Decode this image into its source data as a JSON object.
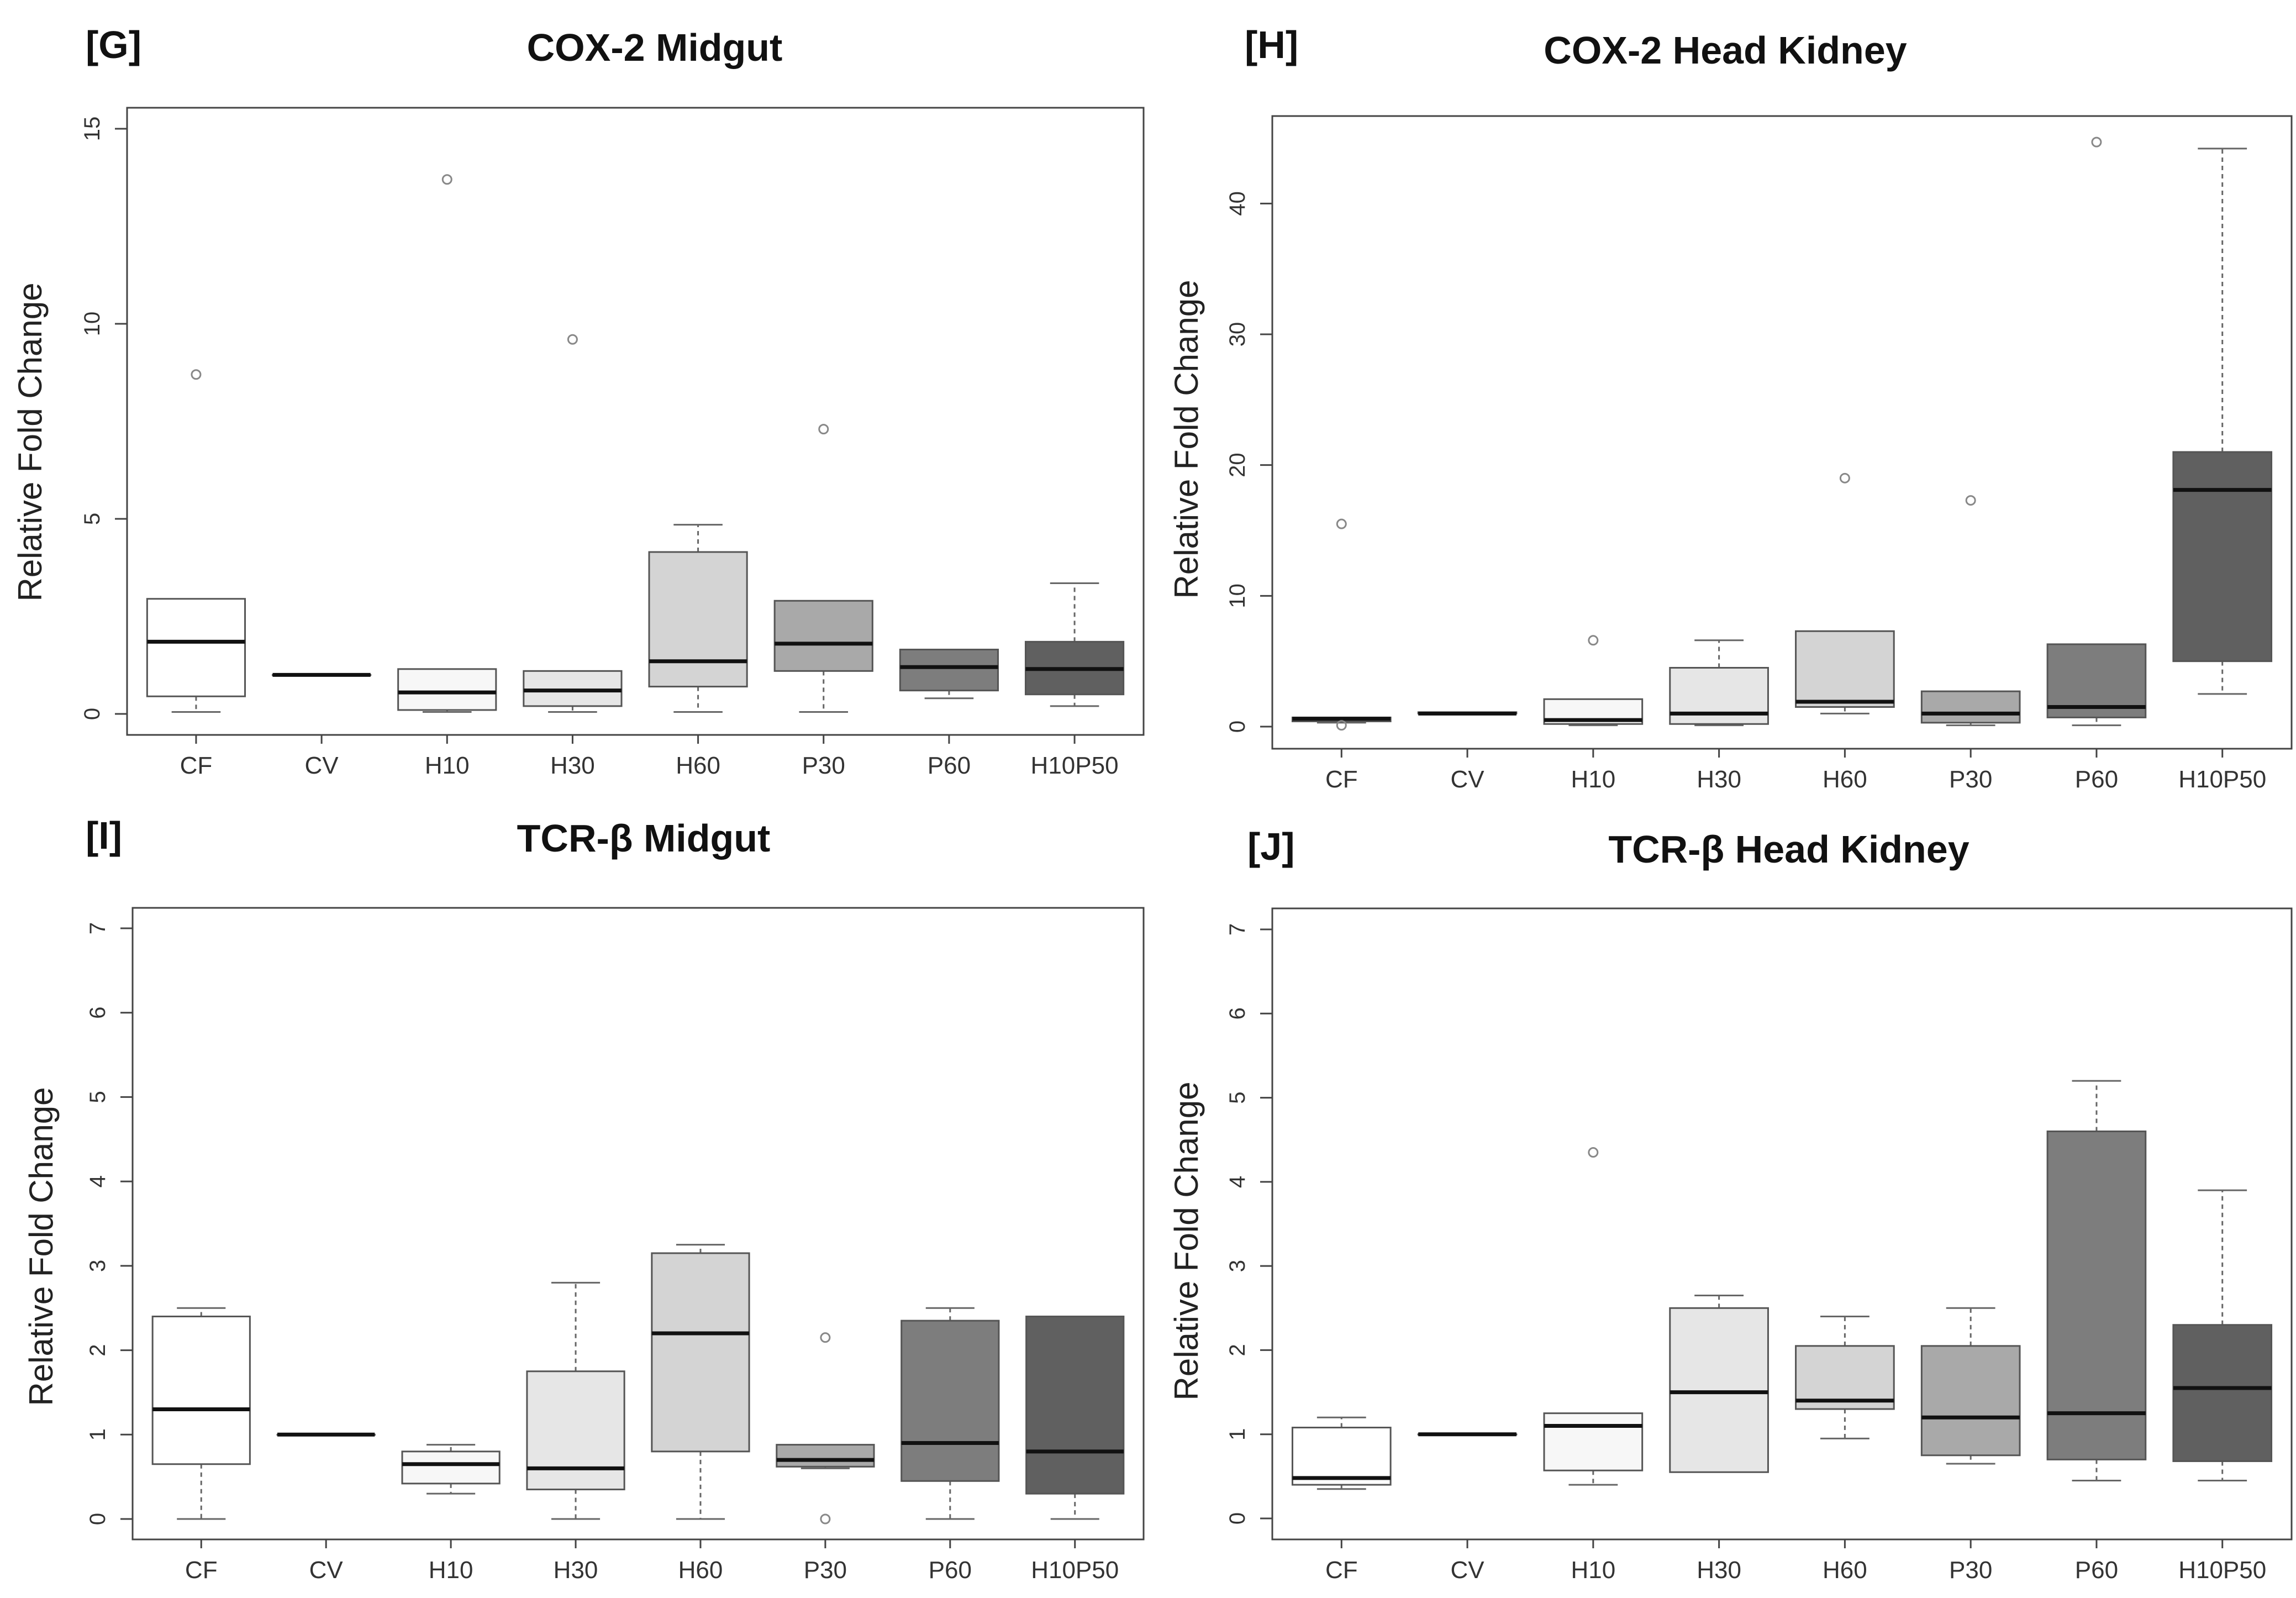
{
  "figure": {
    "box_colors": [
      "#ffffff",
      "#ffffff",
      "#f7f7f7",
      "#e6e6e6",
      "#d4d4d4",
      "#a9a9a9",
      "#7d7d7d",
      "#606060"
    ],
    "outline_color": "#555555",
    "outlier_color": "#888888"
  },
  "chart_data": [
    {
      "id": "G",
      "panel_label": "[G]",
      "type": "box",
      "title": "COX-2 Midgut",
      "xlabel": "",
      "ylabel": "Relative Fold Change",
      "ylim": [
        0,
        15
      ],
      "yticks": [
        0,
        5,
        10,
        15
      ],
      "categories": [
        "CF",
        "CV",
        "H10",
        "H30",
        "H60",
        "P30",
        "P60",
        "H10P50"
      ],
      "boxes": [
        {
          "min": 0.05,
          "q1": 0.45,
          "median": 1.85,
          "q3": 2.95,
          "max": 2.95,
          "outliers": [
            8.7
          ]
        },
        {
          "min": 1.0,
          "q1": 1.0,
          "median": 1.0,
          "q3": 1.0,
          "max": 1.0,
          "outliers": []
        },
        {
          "min": 0.05,
          "q1": 0.1,
          "median": 0.55,
          "q3": 1.15,
          "max": 1.15,
          "outliers": [
            13.7
          ]
        },
        {
          "min": 0.05,
          "q1": 0.2,
          "median": 0.6,
          "q3": 1.1,
          "max": 1.1,
          "outliers": [
            9.6
          ]
        },
        {
          "min": 0.05,
          "q1": 0.7,
          "median": 1.35,
          "q3": 4.15,
          "max": 4.85,
          "outliers": []
        },
        {
          "min": 0.05,
          "q1": 1.1,
          "median": 1.8,
          "q3": 2.9,
          "max": 2.9,
          "outliers": [
            7.3
          ]
        },
        {
          "min": 0.4,
          "q1": 0.6,
          "median": 1.2,
          "q3": 1.65,
          "max": 1.65,
          "outliers": []
        },
        {
          "min": 0.2,
          "q1": 0.5,
          "median": 1.15,
          "q3": 1.85,
          "max": 3.35,
          "outliers": []
        }
      ]
    },
    {
      "id": "H",
      "panel_label": "[H]",
      "type": "box",
      "title": "COX-2 Head Kidney",
      "xlabel": "",
      "ylabel": "Relative Fold Change",
      "ylim": [
        0,
        45
      ],
      "yticks": [
        0,
        10,
        20,
        30,
        40
      ],
      "categories": [
        "CF",
        "CV",
        "H10",
        "H30",
        "H60",
        "P30",
        "P60",
        "H10P50"
      ],
      "boxes": [
        {
          "min": 0.3,
          "q1": 0.4,
          "median": 0.6,
          "q3": 0.7,
          "max": 0.7,
          "outliers": [
            15.5,
            0.1
          ]
        },
        {
          "min": 1.0,
          "q1": 1.0,
          "median": 1.0,
          "q3": 1.1,
          "max": 1.1,
          "outliers": []
        },
        {
          "min": 0.1,
          "q1": 0.2,
          "median": 0.5,
          "q3": 2.1,
          "max": 2.1,
          "outliers": [
            6.6
          ]
        },
        {
          "min": 0.1,
          "q1": 0.2,
          "median": 1.0,
          "q3": 4.5,
          "max": 6.6,
          "outliers": []
        },
        {
          "min": 1.0,
          "q1": 1.5,
          "median": 1.9,
          "q3": 7.3,
          "max": 7.3,
          "outliers": [
            19.0
          ]
        },
        {
          "min": 0.1,
          "q1": 0.3,
          "median": 1.0,
          "q3": 2.7,
          "max": 2.7,
          "outliers": [
            17.3
          ]
        },
        {
          "min": 0.1,
          "q1": 0.7,
          "median": 1.5,
          "q3": 6.3,
          "max": 6.3,
          "outliers": [
            44.7
          ]
        },
        {
          "min": 2.5,
          "q1": 5.0,
          "median": 18.1,
          "q3": 21.0,
          "max": 44.2,
          "outliers": []
        }
      ]
    },
    {
      "id": "I",
      "panel_label": "[I]",
      "type": "box",
      "title": "TCR-β Midgut",
      "xlabel": "",
      "ylabel": "Relative Fold Change",
      "ylim": [
        0,
        7
      ],
      "yticks": [
        0,
        1,
        2,
        3,
        4,
        5,
        6,
        7
      ],
      "categories": [
        "CF",
        "CV",
        "H10",
        "H30",
        "H60",
        "P30",
        "P60",
        "H10P50"
      ],
      "boxes": [
        {
          "min": 0.0,
          "q1": 0.65,
          "median": 1.3,
          "q3": 2.4,
          "max": 2.5,
          "outliers": []
        },
        {
          "min": 1.0,
          "q1": 1.0,
          "median": 1.0,
          "q3": 1.0,
          "max": 1.0,
          "outliers": []
        },
        {
          "min": 0.3,
          "q1": 0.42,
          "median": 0.65,
          "q3": 0.8,
          "max": 0.88,
          "outliers": []
        },
        {
          "min": 0.0,
          "q1": 0.35,
          "median": 0.6,
          "q3": 1.75,
          "max": 2.8,
          "outliers": []
        },
        {
          "min": 0.0,
          "q1": 0.8,
          "median": 2.2,
          "q3": 3.15,
          "max": 3.25,
          "outliers": []
        },
        {
          "min": 0.6,
          "q1": 0.62,
          "median": 0.7,
          "q3": 0.88,
          "max": 0.88,
          "outliers": [
            2.15,
            0.0
          ]
        },
        {
          "min": 0.0,
          "q1": 0.45,
          "median": 0.9,
          "q3": 2.35,
          "max": 2.5,
          "outliers": []
        },
        {
          "min": 0.0,
          "q1": 0.3,
          "median": 0.8,
          "q3": 2.4,
          "max": 2.4,
          "outliers": []
        }
      ]
    },
    {
      "id": "J",
      "panel_label": "[J]",
      "type": "box",
      "title": "TCR-β Head Kidney",
      "xlabel": "",
      "ylabel": "Relative Fold Change",
      "ylim": [
        0,
        7
      ],
      "yticks": [
        0,
        1,
        2,
        3,
        4,
        5,
        6,
        7
      ],
      "categories": [
        "CF",
        "CV",
        "H10",
        "H30",
        "H60",
        "P30",
        "P60",
        "H10P50"
      ],
      "boxes": [
        {
          "min": 0.35,
          "q1": 0.4,
          "median": 0.48,
          "q3": 1.08,
          "max": 1.2,
          "outliers": []
        },
        {
          "min": 1.0,
          "q1": 1.0,
          "median": 1.0,
          "q3": 1.0,
          "max": 1.0,
          "outliers": []
        },
        {
          "min": 0.4,
          "q1": 0.57,
          "median": 1.1,
          "q3": 1.25,
          "max": 1.25,
          "outliers": [
            4.35
          ]
        },
        {
          "min": 0.55,
          "q1": 0.55,
          "median": 1.5,
          "q3": 2.5,
          "max": 2.65,
          "outliers": []
        },
        {
          "min": 0.95,
          "q1": 1.3,
          "median": 1.4,
          "q3": 2.05,
          "max": 2.4,
          "outliers": []
        },
        {
          "min": 0.65,
          "q1": 0.75,
          "median": 1.2,
          "q3": 2.05,
          "max": 2.5,
          "outliers": []
        },
        {
          "min": 0.45,
          "q1": 0.7,
          "median": 1.25,
          "q3": 4.6,
          "max": 5.2,
          "outliers": []
        },
        {
          "min": 0.45,
          "q1": 0.68,
          "median": 1.55,
          "q3": 2.3,
          "max": 3.9,
          "outliers": []
        }
      ]
    }
  ]
}
